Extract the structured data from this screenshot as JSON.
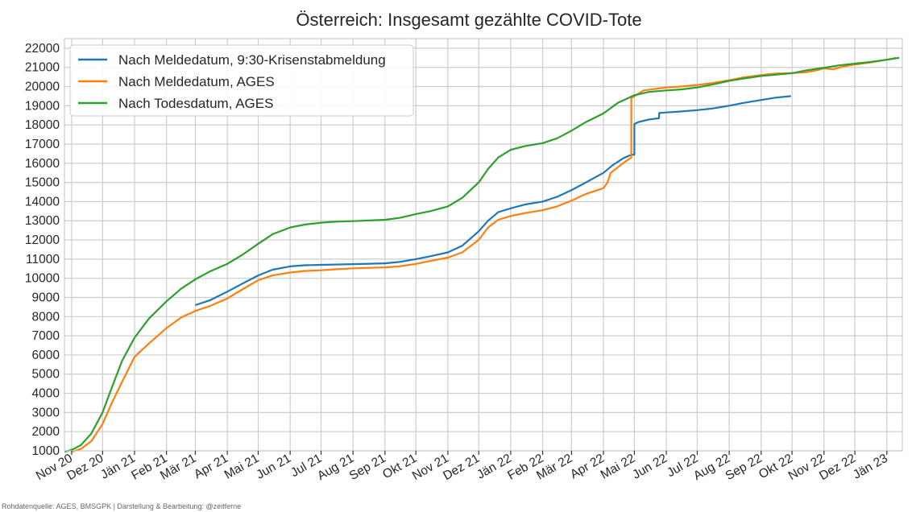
{
  "chart_data": {
    "type": "line",
    "title": "Österreich: Insgesamt gezählte COVID-Tote",
    "xlabel": "",
    "ylabel": "",
    "ylim": [
      1000,
      22500
    ],
    "yticks": [
      1000,
      2000,
      3000,
      4000,
      5000,
      6000,
      7000,
      8000,
      9000,
      10000,
      11000,
      12000,
      13000,
      14000,
      15000,
      16000,
      17000,
      18000,
      19000,
      20000,
      21000,
      22000
    ],
    "xlim": [
      "2020-10-25",
      "2023-01-16"
    ],
    "xticks": [
      {
        "date": "2020-11-01",
        "label": "Nov 20"
      },
      {
        "date": "2020-12-01",
        "label": "Dez 20"
      },
      {
        "date": "2021-01-01",
        "label": "Jän 21"
      },
      {
        "date": "2021-02-01",
        "label": "Feb 21"
      },
      {
        "date": "2021-03-01",
        "label": "Mär 21"
      },
      {
        "date": "2021-04-01",
        "label": "Apr 21"
      },
      {
        "date": "2021-05-01",
        "label": "Mai 21"
      },
      {
        "date": "2021-06-01",
        "label": "Jun 21"
      },
      {
        "date": "2021-07-01",
        "label": "Jul 21"
      },
      {
        "date": "2021-08-01",
        "label": "Aug 21"
      },
      {
        "date": "2021-09-01",
        "label": "Sep 21"
      },
      {
        "date": "2021-10-01",
        "label": "Okt 21"
      },
      {
        "date": "2021-11-01",
        "label": "Nov 21"
      },
      {
        "date": "2021-12-01",
        "label": "Dez 21"
      },
      {
        "date": "2022-01-01",
        "label": "Jän 22"
      },
      {
        "date": "2022-02-01",
        "label": "Feb 22"
      },
      {
        "date": "2022-03-01",
        "label": "Mär 22"
      },
      {
        "date": "2022-04-01",
        "label": "Apr 22"
      },
      {
        "date": "2022-05-01",
        "label": "Mai 22"
      },
      {
        "date": "2022-06-01",
        "label": "Jun 22"
      },
      {
        "date": "2022-07-01",
        "label": "Jul 22"
      },
      {
        "date": "2022-08-01",
        "label": "Aug 22"
      },
      {
        "date": "2022-09-01",
        "label": "Sep 22"
      },
      {
        "date": "2022-10-01",
        "label": "Okt 22"
      },
      {
        "date": "2022-11-01",
        "label": "Nov 22"
      },
      {
        "date": "2022-12-01",
        "label": "Dez 22"
      },
      {
        "date": "2023-01-01",
        "label": "Jän 23"
      }
    ],
    "grid": true,
    "legend_position": "top-left",
    "series": [
      {
        "name": "Nach Meldedatum, 9:30-Krisenstabmeldung",
        "color": "#1f77b4",
        "points": [
          [
            "2021-03-01",
            8600
          ],
          [
            "2021-03-15",
            8850
          ],
          [
            "2021-04-01",
            9300
          ],
          [
            "2021-04-15",
            9700
          ],
          [
            "2021-05-01",
            10150
          ],
          [
            "2021-05-15",
            10450
          ],
          [
            "2021-06-01",
            10620
          ],
          [
            "2021-06-15",
            10680
          ],
          [
            "2021-07-01",
            10700
          ],
          [
            "2021-08-01",
            10740
          ],
          [
            "2021-09-01",
            10780
          ],
          [
            "2021-09-15",
            10850
          ],
          [
            "2021-10-01",
            11000
          ],
          [
            "2021-10-15",
            11150
          ],
          [
            "2021-11-01",
            11350
          ],
          [
            "2021-11-15",
            11700
          ],
          [
            "2021-12-01",
            12450
          ],
          [
            "2021-12-10",
            13000
          ],
          [
            "2021-12-20",
            13450
          ],
          [
            "2022-01-01",
            13650
          ],
          [
            "2022-01-15",
            13850
          ],
          [
            "2022-02-01",
            14000
          ],
          [
            "2022-02-15",
            14250
          ],
          [
            "2022-03-01",
            14600
          ],
          [
            "2022-03-15",
            15000
          ],
          [
            "2022-04-01",
            15500
          ],
          [
            "2022-04-10",
            15900
          ],
          [
            "2022-04-20",
            16250
          ],
          [
            "2022-04-28",
            16450
          ],
          [
            "2022-05-01",
            16450
          ],
          [
            "2022-05-01",
            18050
          ],
          [
            "2022-05-05",
            18150
          ],
          [
            "2022-05-15",
            18280
          ],
          [
            "2022-05-25",
            18350
          ],
          [
            "2022-05-25",
            18620
          ],
          [
            "2022-06-01",
            18650
          ],
          [
            "2022-06-15",
            18700
          ],
          [
            "2022-07-01",
            18770
          ],
          [
            "2022-07-15",
            18850
          ],
          [
            "2022-08-01",
            19000
          ],
          [
            "2022-08-15",
            19150
          ],
          [
            "2022-09-01",
            19300
          ],
          [
            "2022-09-15",
            19420
          ],
          [
            "2022-09-30",
            19500
          ]
        ]
      },
      {
        "name": "Nach Meldedatum, AGES",
        "color": "#ff7f0e",
        "points": [
          [
            "2020-11-01",
            950
          ],
          [
            "2020-11-10",
            1100
          ],
          [
            "2020-11-20",
            1500
          ],
          [
            "2020-12-01",
            2400
          ],
          [
            "2020-12-10",
            3500
          ],
          [
            "2020-12-20",
            4600
          ],
          [
            "2021-01-01",
            5900
          ],
          [
            "2021-01-15",
            6600
          ],
          [
            "2021-02-01",
            7400
          ],
          [
            "2021-02-15",
            7950
          ],
          [
            "2021-03-01",
            8300
          ],
          [
            "2021-03-15",
            8550
          ],
          [
            "2021-04-01",
            8950
          ],
          [
            "2021-04-15",
            9400
          ],
          [
            "2021-05-01",
            9900
          ],
          [
            "2021-05-15",
            10150
          ],
          [
            "2021-06-01",
            10300
          ],
          [
            "2021-06-15",
            10380
          ],
          [
            "2021-07-01",
            10420
          ],
          [
            "2021-07-15",
            10470
          ],
          [
            "2021-08-01",
            10520
          ],
          [
            "2021-09-01",
            10570
          ],
          [
            "2021-09-15",
            10620
          ],
          [
            "2021-10-01",
            10750
          ],
          [
            "2021-10-15",
            10900
          ],
          [
            "2021-11-01",
            11080
          ],
          [
            "2021-11-15",
            11350
          ],
          [
            "2021-12-01",
            12000
          ],
          [
            "2021-12-10",
            12650
          ],
          [
            "2021-12-20",
            13050
          ],
          [
            "2022-01-01",
            13250
          ],
          [
            "2022-01-15",
            13400
          ],
          [
            "2022-02-01",
            13550
          ],
          [
            "2022-02-15",
            13750
          ],
          [
            "2022-03-01",
            14050
          ],
          [
            "2022-03-15",
            14400
          ],
          [
            "2022-04-01",
            14700
          ],
          [
            "2022-04-05",
            15000
          ],
          [
            "2022-04-08",
            15500
          ],
          [
            "2022-04-20",
            16000
          ],
          [
            "2022-04-28",
            16300
          ],
          [
            "2022-04-28",
            19400
          ],
          [
            "2022-05-10",
            19800
          ],
          [
            "2022-06-01",
            19950
          ],
          [
            "2022-06-15",
            20000
          ],
          [
            "2022-07-01",
            20080
          ],
          [
            "2022-07-15",
            20180
          ],
          [
            "2022-08-01",
            20330
          ],
          [
            "2022-08-15",
            20480
          ],
          [
            "2022-09-01",
            20600
          ],
          [
            "2022-09-15",
            20680
          ],
          [
            "2022-09-30",
            20700
          ],
          [
            "2022-10-15",
            20750
          ],
          [
            "2022-10-25",
            20850
          ],
          [
            "2022-11-01",
            20950
          ],
          [
            "2022-11-10",
            20900
          ],
          [
            "2022-11-20",
            21050
          ],
          [
            "2022-12-01",
            21150
          ],
          [
            "2022-12-15",
            21250
          ],
          [
            "2023-01-01",
            21400
          ],
          [
            "2023-01-10",
            21500
          ]
        ]
      },
      {
        "name": "Nach Todesdatum, AGES",
        "color": "#2ca02c",
        "points": [
          [
            "2020-10-25",
            950
          ],
          [
            "2020-11-01",
            1050
          ],
          [
            "2020-11-10",
            1300
          ],
          [
            "2020-11-20",
            1900
          ],
          [
            "2020-12-01",
            3000
          ],
          [
            "2020-12-10",
            4300
          ],
          [
            "2020-12-20",
            5700
          ],
          [
            "2021-01-01",
            6900
          ],
          [
            "2021-01-15",
            7900
          ],
          [
            "2021-02-01",
            8800
          ],
          [
            "2021-02-15",
            9450
          ],
          [
            "2021-03-01",
            9950
          ],
          [
            "2021-03-15",
            10350
          ],
          [
            "2021-04-01",
            10750
          ],
          [
            "2021-04-15",
            11200
          ],
          [
            "2021-05-01",
            11800
          ],
          [
            "2021-05-15",
            12300
          ],
          [
            "2021-06-01",
            12650
          ],
          [
            "2021-06-15",
            12800
          ],
          [
            "2021-07-01",
            12900
          ],
          [
            "2021-07-15",
            12950
          ],
          [
            "2021-08-01",
            12980
          ],
          [
            "2021-09-01",
            13050
          ],
          [
            "2021-09-15",
            13150
          ],
          [
            "2021-10-01",
            13350
          ],
          [
            "2021-10-15",
            13500
          ],
          [
            "2021-11-01",
            13750
          ],
          [
            "2021-11-15",
            14200
          ],
          [
            "2021-12-01",
            15000
          ],
          [
            "2021-12-10",
            15700
          ],
          [
            "2021-12-20",
            16300
          ],
          [
            "2022-01-01",
            16700
          ],
          [
            "2022-01-15",
            16900
          ],
          [
            "2022-02-01",
            17050
          ],
          [
            "2022-02-15",
            17300
          ],
          [
            "2022-03-01",
            17700
          ],
          [
            "2022-03-15",
            18150
          ],
          [
            "2022-04-01",
            18600
          ],
          [
            "2022-04-15",
            19150
          ],
          [
            "2022-05-01",
            19550
          ],
          [
            "2022-05-15",
            19720
          ],
          [
            "2022-06-01",
            19800
          ],
          [
            "2022-06-15",
            19850
          ],
          [
            "2022-07-01",
            19950
          ],
          [
            "2022-07-15",
            20100
          ],
          [
            "2022-08-01",
            20300
          ],
          [
            "2022-08-15",
            20420
          ],
          [
            "2022-09-01",
            20550
          ],
          [
            "2022-09-15",
            20620
          ],
          [
            "2022-10-01",
            20700
          ],
          [
            "2022-10-15",
            20850
          ],
          [
            "2022-11-01",
            20980
          ],
          [
            "2022-11-15",
            21100
          ],
          [
            "2022-12-01",
            21200
          ],
          [
            "2022-12-15",
            21280
          ],
          [
            "2023-01-01",
            21400
          ],
          [
            "2023-01-13",
            21500
          ]
        ]
      }
    ]
  },
  "footer": {
    "source": "Rohdatenquelle: AGES, BMSGPK | Darstellung & Bearbeitung: @zeitferne"
  }
}
